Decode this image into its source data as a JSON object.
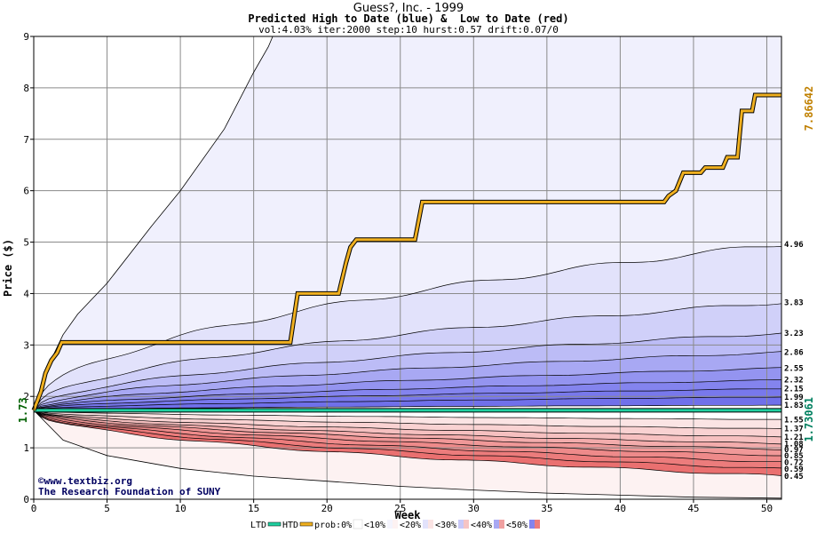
{
  "title": "Guess?, Inc. - 1999",
  "subtitle": "Predicted High to Date (blue) &  Low to Date (red)",
  "params": "vol:4.03% iter:2000 step:10 hurst:0.57 drift:0.07/0",
  "watermark": {
    "line1": "www.textbiz.org",
    "line2": "The Research Foundation of SUNY"
  },
  "legend": {
    "ltd": "LTD",
    "htd": "HTD",
    "prob": "prob:0%",
    "items": [
      "<10%",
      "<20%",
      "<30%",
      "<40%",
      "<50%"
    ]
  },
  "colors": {
    "htd": "#f0b020",
    "ltd": "#20d0a0",
    "left_label": "#006000",
    "right_top_label": "#c08000",
    "right_bottom_label": "#008060",
    "blue_bands": [
      "#f2f2fd",
      "#e4e4fb",
      "#ccccf8",
      "#b4b4f5",
      "#9a9af2",
      "#8080ee",
      "#6a6aea"
    ],
    "red_bands": [
      "#fdf0f0",
      "#fbe0e0",
      "#f8c8c8",
      "#f5b0b0",
      "#f29898",
      "#ee8080",
      "#ea6a6a"
    ]
  },
  "chart_data": {
    "type": "area",
    "xlabel": "Week",
    "ylabel": "Price ($)",
    "xlim": [
      0,
      51
    ],
    "ylim": [
      0,
      9
    ],
    "x_ticks": [
      "0",
      "5",
      "10",
      "15",
      "20",
      "25",
      "30",
      "35",
      "40",
      "45",
      "50"
    ],
    "y_ticks": [
      "0",
      "1",
      "2",
      "3",
      "4",
      "5",
      "6",
      "7",
      "8",
      "9"
    ],
    "start_price": 1.73,
    "start_label": "1.73",
    "right_top_label": "7.86642",
    "right_bottom_label": "1.73061",
    "blue_end_labels": [
      "4.96",
      "3.83",
      "3.23",
      "2.86",
      "2.55",
      "2.32",
      "2.15",
      "1.99",
      "1.83"
    ],
    "blue_end_values": [
      4.96,
      3.83,
      3.23,
      2.86,
      2.55,
      2.32,
      2.15,
      1.99,
      1.83
    ],
    "red_end_labels": [
      "1.55",
      "1.37",
      "1.21",
      "1.08",
      "0.97",
      "0.85",
      "0.72",
      "0.59",
      "0.45"
    ],
    "red_end_values": [
      1.55,
      1.37,
      1.21,
      1.08,
      0.97,
      0.85,
      0.72,
      0.59,
      0.45
    ],
    "max_curve": [
      [
        0,
        1.73
      ],
      [
        1,
        2.6
      ],
      [
        2,
        3.2
      ],
      [
        3,
        3.6
      ],
      [
        5,
        4.2
      ],
      [
        8,
        5.3
      ],
      [
        10,
        6.0
      ],
      [
        13,
        7.2
      ],
      [
        15,
        8.3
      ],
      [
        16,
        8.8
      ],
      [
        16.3,
        9
      ],
      [
        51,
        9
      ]
    ],
    "min_curve": [
      [
        0,
        1.73
      ],
      [
        2,
        1.15
      ],
      [
        5,
        0.85
      ],
      [
        10,
        0.6
      ],
      [
        15,
        0.45
      ],
      [
        20,
        0.35
      ],
      [
        25,
        0.25
      ],
      [
        30,
        0.18
      ],
      [
        35,
        0.12
      ],
      [
        40,
        0.08
      ],
      [
        45,
        0.04
      ],
      [
        51,
        0.02
      ]
    ],
    "htd_series": [
      [
        0,
        1.73
      ],
      [
        0.5,
        2.1
      ],
      [
        0.8,
        2.45
      ],
      [
        1.2,
        2.7
      ],
      [
        1.6,
        2.85
      ],
      [
        1.9,
        3.05
      ],
      [
        17.5,
        3.05
      ],
      [
        18,
        4.0
      ],
      [
        20.8,
        4.0
      ],
      [
        21.3,
        4.6
      ],
      [
        21.6,
        4.9
      ],
      [
        22,
        5.05
      ],
      [
        26,
        5.05
      ],
      [
        26.5,
        5.78
      ],
      [
        43,
        5.78
      ],
      [
        43.3,
        5.9
      ],
      [
        43.8,
        6.0
      ],
      [
        44.3,
        6.35
      ],
      [
        45.5,
        6.35
      ],
      [
        45.8,
        6.45
      ],
      [
        47,
        6.45
      ],
      [
        47.3,
        6.65
      ],
      [
        48,
        6.65
      ],
      [
        48.3,
        7.55
      ],
      [
        49,
        7.55
      ],
      [
        49.2,
        7.86
      ],
      [
        51,
        7.86
      ]
    ],
    "ltd_series": [
      [
        0,
        1.73
      ],
      [
        51,
        1.73
      ]
    ]
  }
}
